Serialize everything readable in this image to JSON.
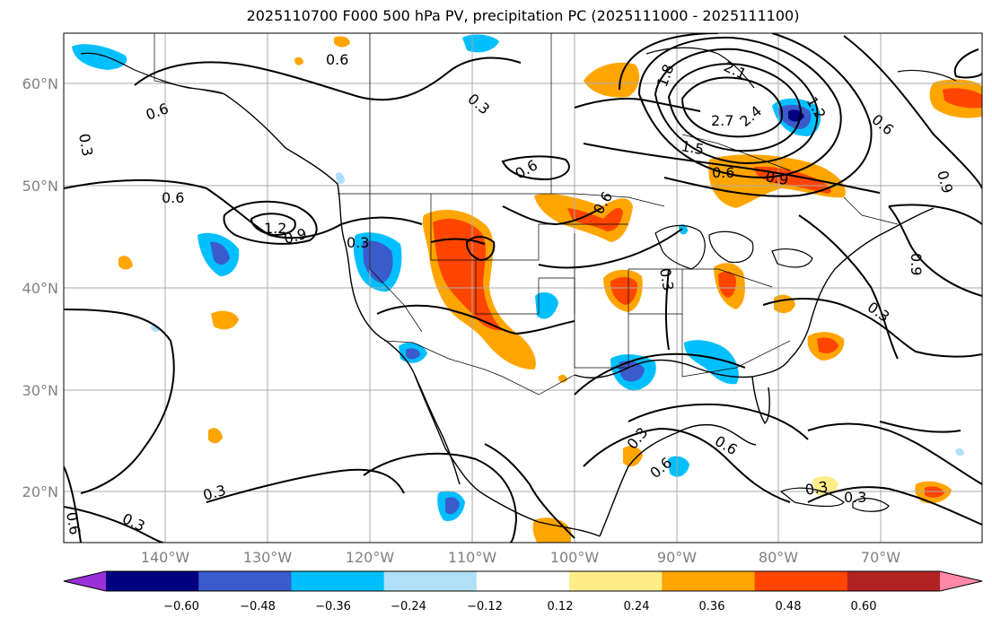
{
  "title": "2025110700 F000 500 hPa PV, precipitation PC (2025111000 - 2025111100)",
  "lat_labels": [
    "60°N",
    "50°N",
    "40°N",
    "30°N",
    "20°N"
  ],
  "lon_labels": [
    "140°W",
    "130°W",
    "120°W",
    "110°W",
    "100°W",
    "90°W",
    "80°W",
    "70°W"
  ],
  "colorbar": {
    "colors": [
      "#9b30d9",
      "#000080",
      "#3a5bcc",
      "#00bfff",
      "#b0e0f8",
      "#ffffff",
      "#ffee88",
      "#ffa500",
      "#ff4500",
      "#b22222",
      "#ff88aa"
    ],
    "tick_labels": [
      "−0.60",
      "−0.48",
      "−0.36",
      "−0.24",
      "−0.12",
      "0.12",
      "0.24",
      "0.36",
      "0.48",
      "0.60"
    ]
  },
  "contour_labels": [
    "0.6",
    "0.6",
    "0.3",
    "0.3",
    "0.6",
    "0.6",
    "1.2",
    "0.9",
    "0.3",
    "1.8",
    "2.1",
    "2.7",
    "2.4",
    "1.5",
    "1.2",
    "0.6",
    "0.9",
    "0.6",
    "0.6",
    "0.3",
    "0.3",
    "0.3",
    "0.6",
    "0.6",
    "0.3",
    "0.3",
    "0.3",
    "0.6",
    "0.9",
    "0.9",
    "0.3"
  ]
}
